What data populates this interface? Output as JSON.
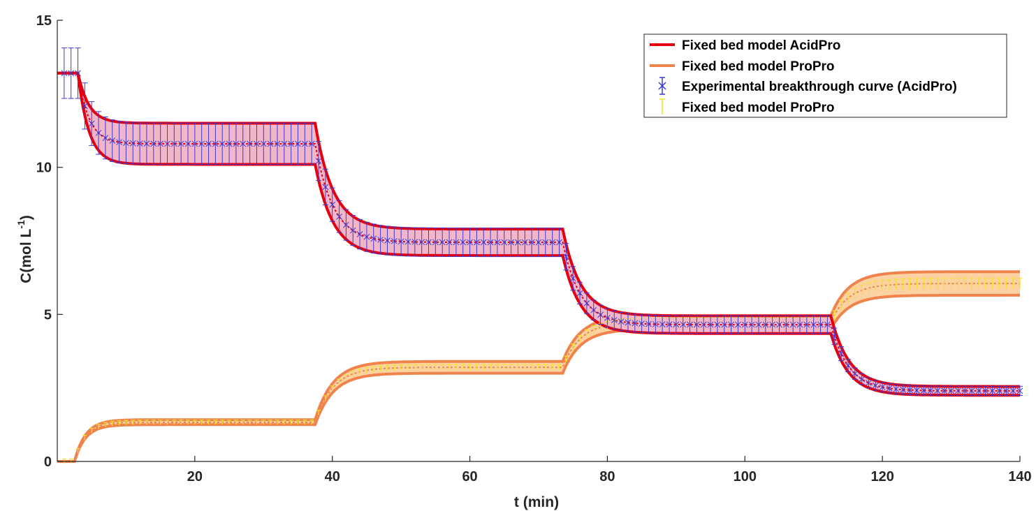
{
  "chart_data": {
    "type": "line",
    "xlabel": "t (min)",
    "ylabel_main": "C(mol L",
    "ylabel_sup": "-1",
    "ylabel_close": ")",
    "xlim": [
      0,
      140
    ],
    "ylim": [
      0,
      15
    ],
    "x_ticks": [
      20,
      40,
      60,
      80,
      100,
      120,
      140
    ],
    "y_ticks": [
      0,
      5,
      10,
      15
    ],
    "grid": false,
    "legend_position": "top-right",
    "legend": [
      {
        "label": "Fixed bed model AcidPro",
        "style": "line",
        "color": "#e5000f"
      },
      {
        "label": "Fixed bed model ProPro",
        "style": "line",
        "color": "#f0824c"
      },
      {
        "label": "Experimental breakthrough curve (AcidPro)",
        "style": "errorbar-x",
        "color": "#3a3ad6"
      },
      {
        "label": "Fixed bed model ProPro",
        "style": "errorbar",
        "color": "#f2e12a"
      }
    ],
    "colors": {
      "acid_line": "#e5000f",
      "acid_band": "#f2b6c9",
      "pro_line": "#f0824c",
      "pro_band": "#fbd3a3",
      "experimental": "#3a3ad6",
      "pro_errorbar": "#f2e12a"
    },
    "series": [
      {
        "name": "Fixed bed model AcidPro",
        "steps": [
          {
            "t0": 0,
            "upper": 13.2,
            "mid": 13.2,
            "lower": 13.2
          },
          {
            "t0": 3,
            "upper": 11.5,
            "mid": 10.8,
            "lower": 10.1
          },
          {
            "t0": 37.5,
            "upper": 7.9,
            "mid": 7.45,
            "lower": 7.0
          },
          {
            "t0": 73.5,
            "upper": 4.95,
            "mid": 4.65,
            "lower": 4.35
          },
          {
            "t0": 112.5,
            "upper": 2.55,
            "mid": 2.4,
            "lower": 2.25
          }
        ]
      },
      {
        "name": "Fixed bed model ProPro",
        "steps": [
          {
            "t0": 0,
            "upper": 0,
            "mid": 0,
            "lower": 0
          },
          {
            "t0": 2.5,
            "upper": 1.42,
            "mid": 1.33,
            "lower": 1.25
          },
          {
            "t0": 37.5,
            "upper": 3.4,
            "mid": 3.2,
            "lower": 3.0
          },
          {
            "t0": 73.5,
            "upper": 4.95,
            "mid": 4.75,
            "lower": 4.5
          },
          {
            "t0": 112.5,
            "upper": 6.45,
            "mid": 6.05,
            "lower": 5.65
          }
        ]
      },
      {
        "name": "Experimental breakthrough curve (AcidPro)",
        "t_start": 1,
        "t_end": 140,
        "t_step": 1,
        "error_bar_ratio": 0.065
      },
      {
        "name": "Fixed bed model ProPro",
        "t_start": 1,
        "t_end": 140,
        "t_step": 1,
        "error_bar_ratio": 0.03
      }
    ]
  }
}
